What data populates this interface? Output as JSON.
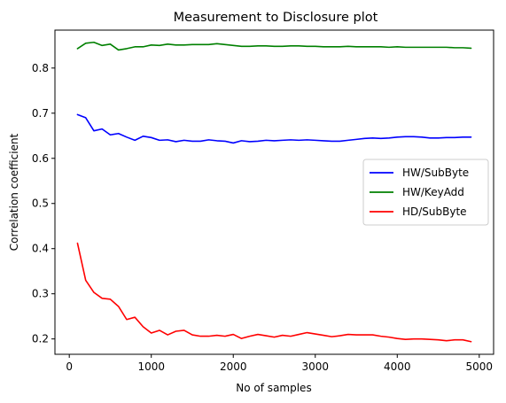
{
  "chart_data": {
    "type": "line",
    "title": "Measurement to Disclosure plot",
    "xlabel": "No of samples",
    "ylabel": "Correlation coefficient",
    "xlim": [
      -175,
      5175
    ],
    "ylim": [
      0.166,
      0.884
    ],
    "xticks": [
      0,
      1000,
      2000,
      3000,
      4000,
      5000
    ],
    "yticks": [
      0.2,
      0.3,
      0.4,
      0.5,
      0.6,
      0.7,
      0.8
    ],
    "ytick_labels": [
      "0.2",
      "0.3",
      "0.4",
      "0.5",
      "0.6",
      "0.7",
      "0.8"
    ],
    "grid": false,
    "legend_position": "center-right",
    "x": [
      100,
      200,
      300,
      400,
      500,
      600,
      700,
      800,
      900,
      1000,
      1100,
      1200,
      1300,
      1400,
      1500,
      1600,
      1700,
      1800,
      1900,
      2000,
      2100,
      2200,
      2300,
      2400,
      2500,
      2600,
      2700,
      2800,
      2900,
      3000,
      3100,
      3200,
      3300,
      3400,
      3500,
      3600,
      3700,
      3800,
      3900,
      4000,
      4100,
      4200,
      4300,
      4400,
      4500,
      4600,
      4700,
      4800,
      4900
    ],
    "series": [
      {
        "name": "HW/SubByte",
        "color": "#0000ff",
        "values": [
          0.697,
          0.69,
          0.661,
          0.665,
          0.652,
          0.655,
          0.647,
          0.64,
          0.649,
          0.646,
          0.64,
          0.641,
          0.637,
          0.64,
          0.638,
          0.638,
          0.641,
          0.639,
          0.638,
          0.634,
          0.639,
          0.637,
          0.638,
          0.64,
          0.639,
          0.64,
          0.641,
          0.64,
          0.641,
          0.64,
          0.639,
          0.638,
          0.638,
          0.64,
          0.642,
          0.644,
          0.645,
          0.644,
          0.645,
          0.647,
          0.648,
          0.648,
          0.647,
          0.645,
          0.645,
          0.646,
          0.646,
          0.647,
          0.647
        ]
      },
      {
        "name": "HW/KeyAdd",
        "color": "#008000",
        "values": [
          0.843,
          0.855,
          0.857,
          0.85,
          0.853,
          0.84,
          0.843,
          0.847,
          0.847,
          0.851,
          0.85,
          0.853,
          0.851,
          0.851,
          0.852,
          0.852,
          0.852,
          0.854,
          0.852,
          0.85,
          0.848,
          0.848,
          0.849,
          0.849,
          0.848,
          0.848,
          0.849,
          0.849,
          0.848,
          0.848,
          0.847,
          0.847,
          0.847,
          0.848,
          0.847,
          0.847,
          0.847,
          0.847,
          0.846,
          0.847,
          0.846,
          0.846,
          0.846,
          0.846,
          0.846,
          0.846,
          0.845,
          0.845,
          0.844
        ]
      },
      {
        "name": "HD/SubByte",
        "color": "#ff0000",
        "values": [
          0.412,
          0.33,
          0.303,
          0.29,
          0.288,
          0.272,
          0.243,
          0.248,
          0.227,
          0.213,
          0.219,
          0.209,
          0.217,
          0.219,
          0.209,
          0.206,
          0.206,
          0.208,
          0.206,
          0.21,
          0.201,
          0.206,
          0.21,
          0.207,
          0.204,
          0.208,
          0.206,
          0.21,
          0.214,
          0.211,
          0.208,
          0.205,
          0.207,
          0.21,
          0.209,
          0.209,
          0.209,
          0.206,
          0.204,
          0.201,
          0.199,
          0.2,
          0.2,
          0.199,
          0.198,
          0.196,
          0.198,
          0.198,
          0.194
        ]
      }
    ]
  }
}
